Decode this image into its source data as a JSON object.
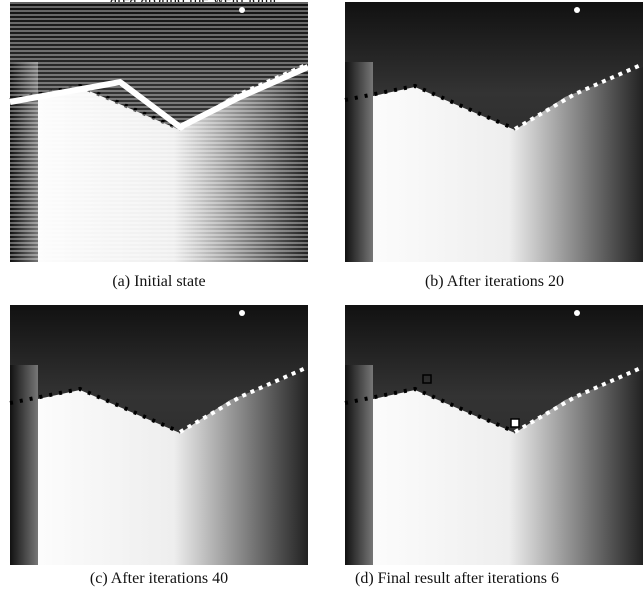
{
  "header": {
    "text": "area around the weld joint"
  },
  "panels": [
    {
      "caption": "(a) Initial state"
    },
    {
      "caption": "(b) After iterations 20"
    },
    {
      "caption": "(c) After iterations 40"
    },
    {
      "caption": "(d) Final result after iterations 6"
    }
  ]
}
